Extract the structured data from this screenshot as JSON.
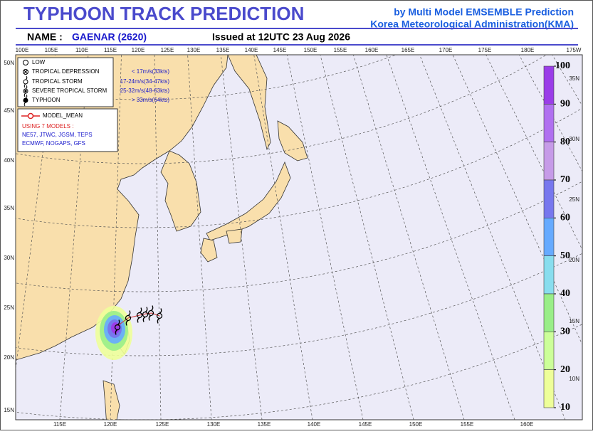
{
  "header": {
    "title": "TYPHOON  TRACK  PREDICTION",
    "subtitle1": "by Multi Model EMSEMBLE Prediction",
    "subtitle2": "Korea Meteorological Administration(KMA)",
    "name_label": "NAME :",
    "name": "GAENAR (2620)",
    "issued": "Issued at  12UTC 23 Aug 2026"
  },
  "legend": {
    "intensity": [
      {
        "label": "LOW"
      },
      {
        "label": "TROPICAL DEPRESSION",
        "range": "< 17m/s(33kts)"
      },
      {
        "label": "TROPICAL STORM",
        "range": "17-24m/s(34-47kts)"
      },
      {
        "label": "SEVERE TROPICAL STORM",
        "range": "25-32m/s(48-63kts)"
      },
      {
        "label": "TYPHOON",
        "range": "> 33m/s(64kts)"
      }
    ],
    "mean": "MODEL_MEAN",
    "count": "USING 7 MODELS :",
    "models": [
      "NE57, JTWC, JGSM, TEPS",
      "ECMWF, NOGAPS, GFS"
    ]
  },
  "map": {
    "top_lon": [
      "100E",
      "105E",
      "110E",
      "115E",
      "120E",
      "125E",
      "130E",
      "135E",
      "140E",
      "145E",
      "150E",
      "155E",
      "160E",
      "165E",
      "170E",
      "175E",
      "180E",
      "175W"
    ],
    "bottom_lon": [
      "115E",
      "120E",
      "125E",
      "130E",
      "135E",
      "140E",
      "145E",
      "150E",
      "155E",
      "160E"
    ],
    "left_lat": [
      "50N",
      "45N",
      "40N",
      "35N",
      "30N",
      "25N",
      "20N",
      "15N"
    ],
    "right_lat": [
      "35N",
      "30N",
      "25N",
      "20N",
      "15N",
      "10N"
    ]
  },
  "colorbar": {
    "ticks": [
      100,
      90,
      80,
      70,
      60,
      50,
      40,
      30,
      20,
      10
    ]
  }
}
